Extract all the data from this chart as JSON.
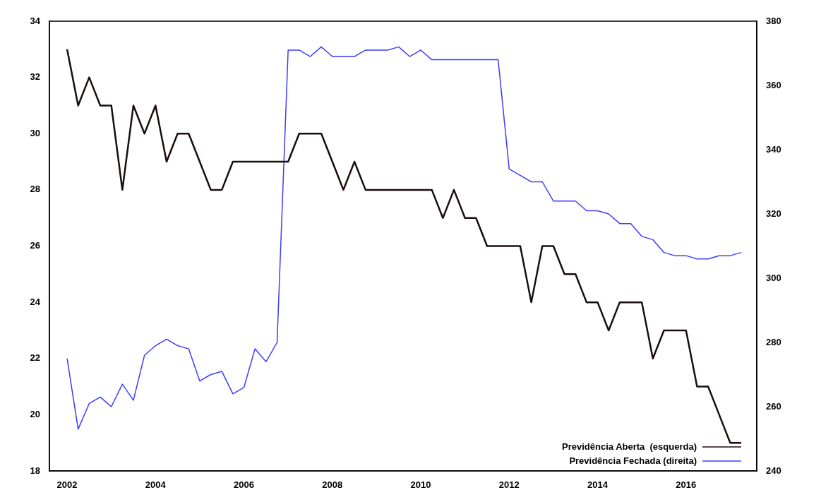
{
  "chart_data": {
    "type": "line",
    "x": [
      2002,
      2002.25,
      2002.5,
      2002.75,
      2003,
      2003.25,
      2003.5,
      2003.75,
      2004,
      2004.25,
      2004.5,
      2004.75,
      2005,
      2005.25,
      2005.5,
      2005.75,
      2006,
      2006.25,
      2006.5,
      2006.75,
      2007,
      2007.25,
      2007.5,
      2007.75,
      2008,
      2008.25,
      2008.5,
      2008.75,
      2009,
      2009.25,
      2009.5,
      2009.75,
      2010,
      2010.25,
      2010.5,
      2010.75,
      2011,
      2011.25,
      2011.5,
      2011.75,
      2012,
      2012.25,
      2012.5,
      2012.75,
      2013,
      2013.25,
      2013.5,
      2013.75,
      2014,
      2014.25,
      2014.5,
      2014.75,
      2015,
      2015.25,
      2015.5,
      2015.75,
      2016,
      2016.25,
      2016.5,
      2016.75,
      2017,
      2017.25
    ],
    "series": [
      {
        "name": "Previdência Aberta  (esquerda)",
        "color": "#1a0d0d",
        "values": [
          33,
          31,
          32,
          31,
          31,
          28,
          31,
          30,
          31,
          29,
          30,
          30,
          29,
          28,
          28,
          29,
          29,
          29,
          29,
          29,
          29,
          30,
          30,
          30,
          29,
          28,
          29,
          28,
          28,
          28,
          28,
          28,
          28,
          28,
          27,
          28,
          27,
          27,
          26,
          26,
          26,
          26,
          24,
          26,
          26,
          25,
          25,
          24,
          24,
          23,
          24,
          24,
          24,
          22,
          23,
          23,
          23,
          21,
          21,
          20,
          19,
          19
        ]
      },
      {
        "name": "Previdência Fechada (direita)",
        "color": "#3c3cff",
        "axis": "y2",
        "values": [
          275,
          253,
          261,
          263,
          260,
          267,
          262,
          276,
          279,
          281,
          279,
          278,
          268,
          270,
          271,
          264,
          266,
          278,
          274,
          280,
          371,
          371,
          369,
          372,
          369,
          369,
          369,
          371,
          371,
          371,
          372,
          369,
          371,
          368,
          368,
          368,
          368,
          368,
          368,
          368,
          334,
          332,
          330,
          330,
          324,
          324,
          324,
          321,
          321,
          320,
          317,
          317,
          313,
          312,
          308,
          307,
          307,
          306,
          306,
          307,
          307,
          308
        ]
      }
    ],
    "xlim": [
      2001.6,
      2017.6
    ],
    "xticks": [
      2002,
      2004,
      2006,
      2008,
      2010,
      2012,
      2014,
      2016
    ],
    "ylim": [
      18,
      34
    ],
    "yticks": [
      18,
      20,
      22,
      24,
      26,
      28,
      30,
      32,
      34
    ],
    "y2lim": [
      240,
      380
    ],
    "y2ticks": [
      240,
      260,
      280,
      300,
      320,
      340,
      360,
      380
    ],
    "legend": "bottom right",
    "grid": false,
    "marker": "none",
    "line_style": "solid"
  }
}
